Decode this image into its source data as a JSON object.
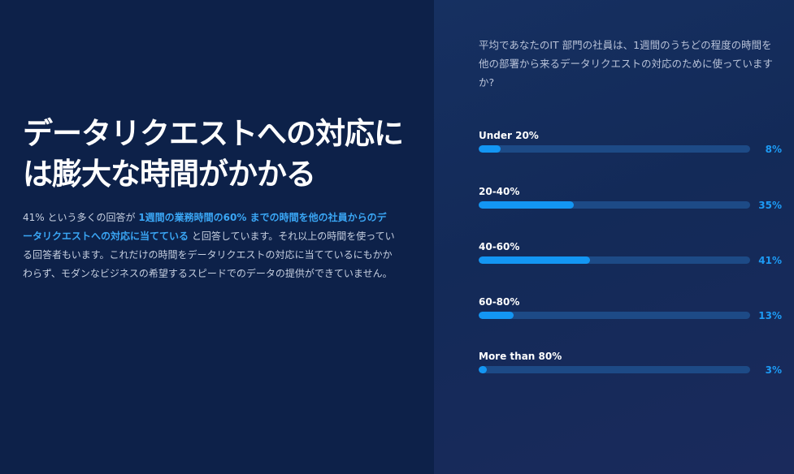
{
  "headline": {
    "line1": "データリクエストへの対応に",
    "line2": "は膨大な時間がかかる"
  },
  "body": {
    "part1": "41% という多くの回答が ",
    "highlight": "1週間の業務時間の60% までの時間を他の社員からのデータリクエストへの対応に当てている",
    "part2": " と回答しています。それ以上の時間を使っている回答者もいます。これだけの時間をデータリクエストの対応に当てているにもかかわらず、モダンなビジネスの希望するスピードでのデータの提供ができていません。"
  },
  "question": "平均であなたのIT 部門の社員は、1週間のうちどの程度の時間を他の部署から来るデータリクエストの対応のために使っていますか?",
  "colors": {
    "accent": "#1396f3",
    "track": "#1d4a86",
    "background": "#0d2149"
  },
  "chart_data": {
    "type": "bar",
    "orientation": "horizontal",
    "title": "",
    "categories": [
      "Under 20%",
      "20-40%",
      "40-60%",
      "60-80%",
      "More than 80%"
    ],
    "values": [
      8,
      35,
      41,
      13,
      3
    ],
    "value_labels": [
      "8%",
      "35%",
      "41%",
      "13%",
      "3%"
    ],
    "xlim": [
      0,
      100
    ]
  }
}
